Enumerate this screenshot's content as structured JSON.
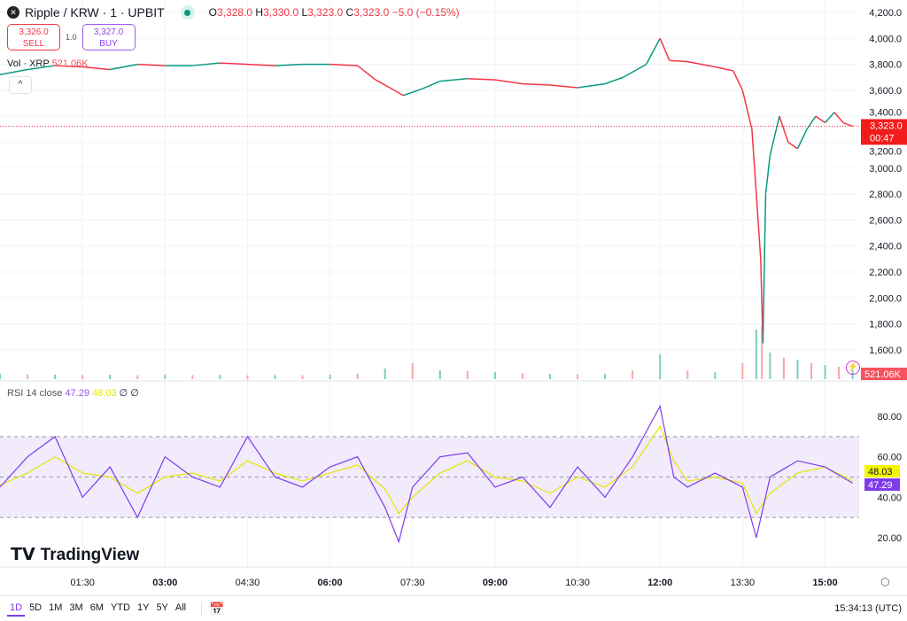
{
  "header": {
    "symbol": "Ripple / KRW · 1 · UPBIT",
    "logo_text": "✕",
    "o_label": "O",
    "o": "3,328.0",
    "h_label": "H",
    "h": "3,330.0",
    "l_label": "L",
    "l": "3,323.0",
    "c_label": "C",
    "c": "3,323.0",
    "change": "−5.0 (−0.15%)"
  },
  "trade": {
    "sell_price": "3,326.0",
    "sell_label": "SELL",
    "spread": "1.0",
    "buy_price": "3,327.0",
    "buy_label": "BUY"
  },
  "volume_legend": {
    "label": "Vol · XRP",
    "value": "521.06K"
  },
  "collapse_icon": "^",
  "rsi_legend": {
    "label": "RSI 14 close",
    "rsi": "47.29",
    "ma": "48.03",
    "extra": "∅ ∅"
  },
  "brand": "TradingView",
  "ranges": [
    "1D",
    "5D",
    "1M",
    "3M",
    "6M",
    "YTD",
    "1Y",
    "5Y",
    "All"
  ],
  "active_range": "1D",
  "clock": "15:34:13 (UTC)",
  "colors": {
    "up": "#089981",
    "down": "#f23645",
    "rsi": "#7e3bea",
    "rsi_ma": "#e6e600",
    "band": "#f1ebfc"
  },
  "chart_data": [
    {
      "type": "line",
      "name": "price",
      "ylim": [
        1400,
        4300
      ],
      "yticks": [
        "4,200.0",
        "4,000.0",
        "3,800.0",
        "3,600.0",
        "3,400.0",
        "3,200.0",
        "3,000.0",
        "2,800.0",
        "2,600.0",
        "2,400.0",
        "2,200.0",
        "2,000.0",
        "1,800.0",
        "1,600.0"
      ],
      "ytick_values": [
        4200,
        4000,
        3800,
        3600,
        3400,
        3200,
        3000,
        2800,
        2600,
        2400,
        2200,
        2000,
        1800,
        1600
      ],
      "xticks": [
        "01:30",
        "03:00",
        "04:30",
        "06:00",
        "07:30",
        "09:00",
        "10:30",
        "12:00",
        "13:30",
        "15:00"
      ],
      "xtick_values": [
        1.5,
        3,
        4.5,
        6,
        7.5,
        9,
        10.5,
        12,
        13.5,
        15
      ],
      "last_price": "3,323.0",
      "last_value": 3323,
      "countdown": "00:47",
      "x": [
        0,
        0.5,
        1,
        1.5,
        2,
        2.5,
        3,
        3.5,
        4,
        4.5,
        5,
        5.5,
        6,
        6.5,
        6.83,
        7.17,
        7.33,
        7.67,
        8,
        8.5,
        9,
        9.5,
        10,
        10.5,
        11,
        11.33,
        11.75,
        12,
        12.17,
        12.5,
        13,
        13.33,
        13.5,
        13.67,
        13.83,
        13.87,
        13.92,
        14,
        14.17,
        14.33,
        14.5,
        14.67,
        14.83,
        15,
        15.17,
        15.33,
        15.5
      ],
      "y": [
        3720,
        3760,
        3790,
        3780,
        3760,
        3800,
        3790,
        3790,
        3810,
        3800,
        3790,
        3800,
        3800,
        3790,
        3680,
        3600,
        3560,
        3610,
        3670,
        3690,
        3680,
        3650,
        3640,
        3620,
        3650,
        3700,
        3800,
        4000,
        3830,
        3820,
        3780,
        3750,
        3600,
        3300,
        2300,
        1650,
        2800,
        3100,
        3400,
        3200,
        3150,
        3300,
        3400,
        3350,
        3430,
        3350,
        3323
      ]
    },
    {
      "type": "bar",
      "name": "volume",
      "unit": "K",
      "last_value": "521.06K",
      "x": [
        0,
        0.5,
        1,
        1.5,
        2,
        2.5,
        3,
        3.5,
        4,
        4.5,
        5,
        5.5,
        6,
        6.5,
        7,
        7.5,
        8,
        8.5,
        9,
        9.5,
        10,
        10.5,
        11,
        11.5,
        12,
        12.5,
        13,
        13.5,
        13.75,
        13.85,
        14,
        14.25,
        14.5,
        14.75,
        15,
        15.25,
        15.5
      ],
      "values": [
        300,
        280,
        260,
        240,
        250,
        220,
        260,
        230,
        240,
        220,
        230,
        220,
        250,
        300,
        600,
        900,
        500,
        450,
        400,
        350,
        300,
        280,
        300,
        500,
        1400,
        500,
        400,
        900,
        2800,
        3000,
        1500,
        1200,
        1100,
        900,
        800,
        700,
        521
      ]
    },
    {
      "type": "line",
      "name": "rsi",
      "ylim": [
        10,
        90
      ],
      "band": [
        30,
        70
      ],
      "midline": 50,
      "yticks": [
        "80.00",
        "60.00",
        "40.00",
        "20.00"
      ],
      "ytick_values": [
        80,
        60,
        40,
        20
      ],
      "rsi_last": "47.29",
      "rsi_ma_last": "48.03",
      "x": [
        0,
        0.5,
        1,
        1.5,
        2,
        2.5,
        3,
        3.5,
        4,
        4.5,
        5,
        5.5,
        6,
        6.5,
        7,
        7.25,
        7.5,
        8,
        8.5,
        9,
        9.5,
        10,
        10.5,
        11,
        11.5,
        12,
        12.25,
        12.5,
        13,
        13.5,
        13.75,
        14,
        14.5,
        15,
        15.5
      ],
      "y": [
        45,
        60,
        70,
        40,
        55,
        30,
        60,
        50,
        45,
        70,
        50,
        45,
        55,
        60,
        35,
        18,
        45,
        60,
        62,
        45,
        50,
        35,
        55,
        40,
        60,
        85,
        50,
        45,
        52,
        45,
        20,
        50,
        58,
        55,
        47
      ],
      "ma": [
        46,
        52,
        60,
        52,
        50,
        42,
        50,
        52,
        48,
        58,
        52,
        48,
        52,
        56,
        44,
        32,
        40,
        52,
        58,
        50,
        48,
        42,
        50,
        45,
        55,
        75,
        58,
        48,
        50,
        47,
        32,
        42,
        52,
        55,
        48
      ]
    }
  ]
}
